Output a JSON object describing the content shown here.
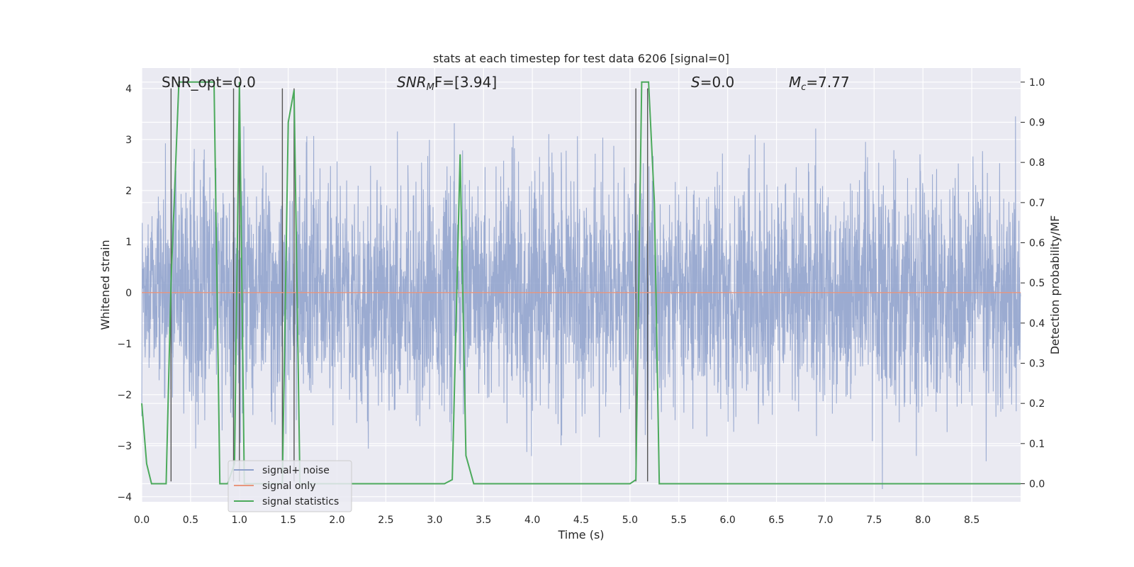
{
  "chart_data": {
    "type": "line",
    "title": "stats at each timestep for test data 6206 [signal=0]",
    "xlabel": "Time (s)",
    "ylabel": "Whitened strain",
    "y2label": "Detection probability/MF",
    "xlim": [
      0.0,
      9.0
    ],
    "ylim": [
      -4.1,
      4.4
    ],
    "y2lim": [
      -0.045,
      1.035
    ],
    "x_ticks": [
      "0.0",
      "0.5",
      "1.0",
      "1.5",
      "2.0",
      "2.5",
      "3.0",
      "3.5",
      "4.0",
      "4.5",
      "5.0",
      "5.5",
      "6.0",
      "6.5",
      "7.0",
      "7.5",
      "8.0",
      "8.5"
    ],
    "y_ticks": [
      "4",
      "3",
      "2",
      "1",
      "0",
      "−1",
      "−2",
      "−3",
      "−4"
    ],
    "y2_ticks": [
      "1.0",
      "0.9",
      "0.8",
      "0.7",
      "0.6",
      "0.5",
      "0.4",
      "0.3",
      "0.2",
      "0.1",
      "0.0"
    ],
    "grid": true,
    "legend_position": "lower-left",
    "annotations": {
      "snr_opt": "SNR_opt=0.0",
      "snr_mf_base": "SNR",
      "snr_mf_sub": "M",
      "snr_mf_rest": "F=[3.94]",
      "s_base": "S",
      "s_rest": "=0.0",
      "mc_base": "M",
      "mc_sub": "c",
      "mc_rest": "=7.77"
    },
    "series": [
      {
        "name": "signal+ noise",
        "color": "#8da0cb",
        "description_points": "dense noise, amplitude approx ±2.5 typical, spikes to ±3.8",
        "noise_std": 1.1
      },
      {
        "name": "signal only",
        "color": "#e8967d",
        "x": [
          0.0,
          9.0
        ],
        "y": [
          0.0,
          0.0
        ]
      },
      {
        "name": "signal statistics",
        "color": "#4caa5c",
        "axis": "right",
        "x": [
          0.0,
          0.05,
          0.1,
          0.25,
          0.3,
          0.38,
          0.5,
          0.65,
          0.74,
          0.8,
          0.88,
          0.95,
          1.0,
          1.05,
          1.1,
          1.44,
          1.5,
          1.56,
          1.62,
          3.1,
          3.18,
          3.26,
          3.32,
          3.4,
          3.5,
          5.0,
          5.06,
          5.12,
          5.19,
          5.25,
          5.3,
          5.5,
          9.0
        ],
        "y": [
          0.2,
          0.05,
          0.0,
          0.0,
          0.5,
          1.0,
          1.0,
          1.0,
          1.0,
          0.0,
          0.0,
          0.05,
          1.0,
          0.0,
          0.0,
          0.0,
          0.9,
          0.98,
          0.0,
          0.0,
          0.01,
          0.82,
          0.07,
          0.0,
          0.0,
          0.0,
          0.01,
          1.0,
          1.0,
          0.7,
          0.0,
          0.0,
          0.0
        ]
      },
      {
        "name": "vertical markers",
        "color": "#555555",
        "x": [
          0.3,
          0.94,
          1.0,
          1.44,
          1.56,
          5.06,
          5.18
        ],
        "y_top": 4.0,
        "y_bottom": -3.7
      }
    ]
  },
  "legend": {
    "items": [
      "signal+ noise",
      "signal only",
      "signal statistics"
    ]
  }
}
